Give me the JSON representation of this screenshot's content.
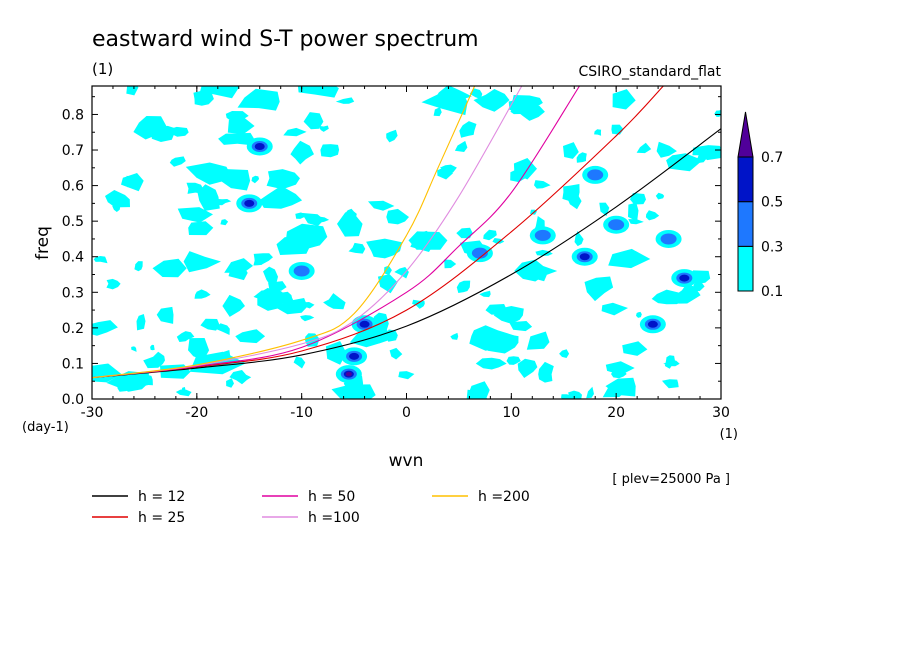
{
  "chart_data": {
    "type": "heatmap",
    "title": "eastward wind S-T power spectrum",
    "title_unit": "(1)",
    "model_label": "CSIRO_standard_flat",
    "xlabel": "wvn",
    "ylabel": "freq",
    "x_unit": "(1)",
    "y_unit": "(day-1)",
    "xlim": [
      -30,
      30
    ],
    "ylim": [
      0,
      0.88
    ],
    "x_ticks": [
      -30,
      -20,
      -10,
      0,
      10,
      20,
      30
    ],
    "x_tick_labels": [
      "-30",
      "-20",
      "-10",
      "0",
      "10",
      "20",
      "30"
    ],
    "y_ticks": [
      0,
      0.1,
      0.2,
      0.3,
      0.4,
      0.5,
      0.6,
      0.7,
      0.8
    ],
    "y_tick_labels": [
      "0.0",
      "0.1",
      "0.2",
      "0.3",
      "0.4",
      "0.5",
      "0.6",
      "0.7",
      "0.8"
    ],
    "annotation": "[ plev=25000 Pa ]",
    "colorbar": {
      "levels": [
        0.1,
        0.3,
        0.5,
        0.7
      ],
      "level_labels": [
        "0.1",
        "0.3",
        "0.5",
        "0.7"
      ],
      "colors": [
        "#00ffff",
        "#1e78ff",
        "#0014c8",
        "#50009a"
      ],
      "extend": "max"
    },
    "contour_blobs": [
      {
        "x": -5.5,
        "y": 0.07,
        "level": 0.7
      },
      {
        "x": -5.0,
        "y": 0.12,
        "level": 0.5
      },
      {
        "x": -4.0,
        "y": 0.21,
        "level": 0.5
      },
      {
        "x": -15.0,
        "y": 0.55,
        "level": 0.5
      },
      {
        "x": -14.0,
        "y": 0.71,
        "level": 0.5
      },
      {
        "x": -10.0,
        "y": 0.36,
        "level": 0.3
      },
      {
        "x": 7.0,
        "y": 0.41,
        "level": 0.3
      },
      {
        "x": 17.0,
        "y": 0.4,
        "level": 0.5
      },
      {
        "x": 18.0,
        "y": 0.63,
        "level": 0.3
      },
      {
        "x": 26.5,
        "y": 0.34,
        "level": 0.5
      },
      {
        "x": 23.5,
        "y": 0.21,
        "level": 0.5
      },
      {
        "x": 25.0,
        "y": 0.45,
        "level": 0.3
      },
      {
        "x": 20.0,
        "y": 0.49,
        "level": 0.3
      },
      {
        "x": 13.0,
        "y": 0.46,
        "level": 0.3
      }
    ],
    "series": [
      {
        "name": "h = 12",
        "color": "#000000",
        "x": [
          -30,
          -20,
          -10,
          0,
          10,
          20,
          30
        ],
        "y": [
          0.06,
          0.087,
          0.124,
          0.205,
          0.35,
          0.54,
          0.76
        ]
      },
      {
        "name": "h = 25",
        "color": "#e00000",
        "x": [
          -30,
          -20,
          -10,
          0,
          10,
          20,
          24.5
        ],
        "y": [
          0.06,
          0.09,
          0.135,
          0.25,
          0.47,
          0.74,
          0.88
        ]
      },
      {
        "name": "h = 50",
        "color": "#e000a0",
        "x": [
          -30,
          -20,
          -10,
          0,
          5,
          10,
          16.5
        ],
        "y": [
          0.06,
          0.092,
          0.145,
          0.3,
          0.43,
          0.58,
          0.88
        ]
      },
      {
        "name": "h =100",
        "color": "#e08ce0",
        "x": [
          -30,
          -20,
          -10,
          -5,
          0,
          5,
          11
        ],
        "y": [
          0.06,
          0.094,
          0.155,
          0.22,
          0.36,
          0.57,
          0.88
        ]
      },
      {
        "name": "h =200",
        "color": "#ffc000",
        "x": [
          -30,
          -20,
          -10,
          -5,
          0,
          3,
          6.5
        ],
        "y": [
          0.06,
          0.096,
          0.165,
          0.24,
          0.46,
          0.65,
          0.88
        ]
      }
    ]
  }
}
